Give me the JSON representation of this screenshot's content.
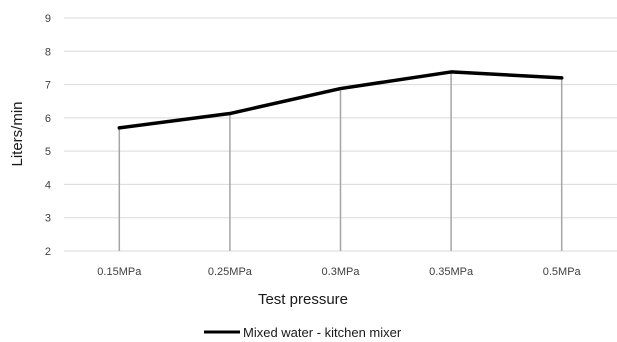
{
  "chart_data": {
    "type": "line",
    "categories": [
      "0.15MPa",
      "0.25MPa",
      "0.3MPa",
      "0.35MPa",
      "0.5MPa"
    ],
    "series": [
      {
        "name": "Mixed water - kitchen mixer",
        "values": [
          5.7,
          6.13,
          6.88,
          7.38,
          7.2
        ],
        "color": "#000000"
      }
    ],
    "xlabel": "Test pressure",
    "ylabel": "Liters/min",
    "ylim": [
      2,
      9
    ],
    "yticks": [
      "2",
      "3",
      "4",
      "5",
      "6",
      "7",
      "8",
      "9"
    ],
    "grid": true,
    "drop_lines": true,
    "legend_position": "bottom",
    "colors": {
      "grid": "#d9d9d9",
      "drop_line": "#a6a6a6",
      "series": "#000000"
    }
  }
}
